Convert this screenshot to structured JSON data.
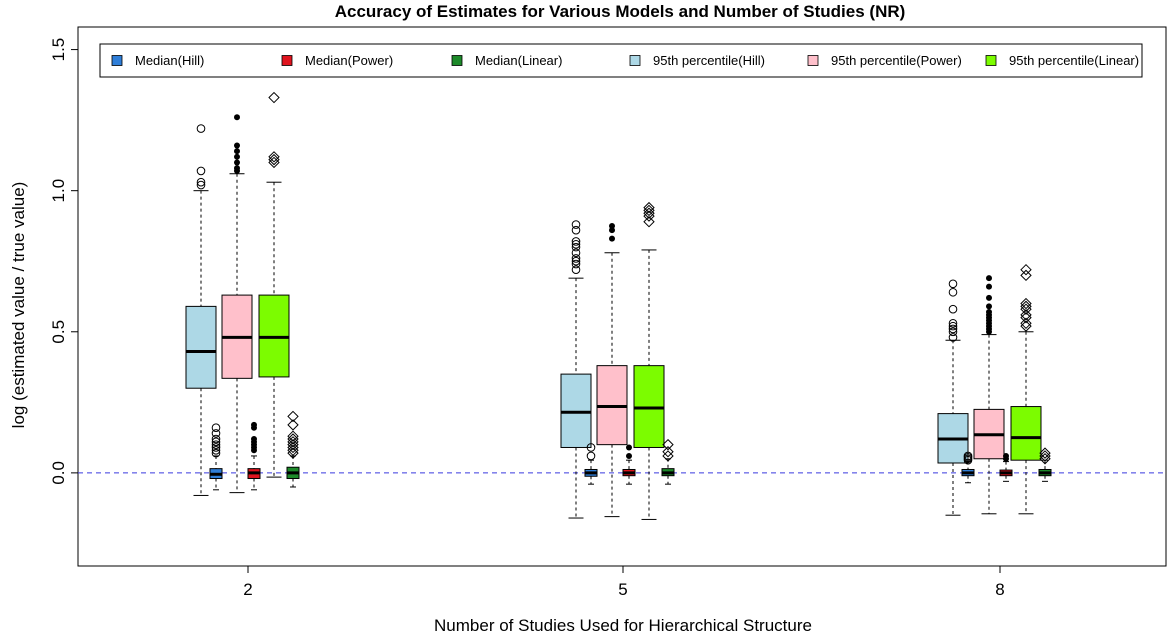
{
  "chart_data": {
    "type": "boxplot",
    "title": "Accuracy of Estimates for Various Models and Number of Studies (NR)",
    "xlabel": "Number of Studies Used for Hierarchical Structure",
    "ylabel": "log (estimated value / true value)",
    "ylim": [
      -0.33,
      1.58
    ],
    "yticks": [
      0.0,
      0.5,
      1.0,
      1.5
    ],
    "ytick_labels": [
      "0.0",
      "0.5",
      "1.0",
      "1.5"
    ],
    "reference_line": {
      "y": 0,
      "color": "#3a3adf",
      "style": "dashed"
    },
    "categories": [
      "2",
      "5",
      "8"
    ],
    "legend": {
      "placement": "top",
      "entries": [
        {
          "label": "Median(Hill)",
          "color": "#2f7ed8"
        },
        {
          "label": "Median(Power)",
          "color": "#e0141e"
        },
        {
          "label": "Median(Linear)",
          "color": "#1d8a2a"
        },
        {
          "label": "95th percentile(Hill)",
          "color": "#add8e6"
        },
        {
          "label": "95th percentile(Power)",
          "color": "#ffc0cb"
        },
        {
          "label": "95th percentile(Linear)",
          "color": "#7cfc00"
        }
      ]
    },
    "series": [
      {
        "name": "95th percentile(Hill)",
        "color": "#add8e6",
        "marker": "circle-open",
        "boxes": [
          {
            "category": "2",
            "q1": 0.3,
            "median": 0.43,
            "q3": 0.59,
            "lower": -0.08,
            "upper": 1.0,
            "outliers": [
              1.02,
              1.03,
              1.07,
              1.22
            ]
          },
          {
            "category": "5",
            "q1": 0.09,
            "median": 0.215,
            "q3": 0.35,
            "lower": -0.16,
            "upper": 0.69,
            "outliers": [
              0.72,
              0.74,
              0.75,
              0.76,
              0.78,
              0.8,
              0.81,
              0.82,
              0.86,
              0.88
            ]
          },
          {
            "category": "8",
            "q1": 0.035,
            "median": 0.12,
            "q3": 0.21,
            "lower": -0.15,
            "upper": 0.47,
            "outliers": [
              0.48,
              0.5,
              0.51,
              0.52,
              0.53,
              0.58,
              0.64,
              0.67
            ]
          }
        ]
      },
      {
        "name": "Median(Hill)",
        "color": "#2f7ed8",
        "marker": "circle-open",
        "boxes": [
          {
            "category": "2",
            "q1": -0.02,
            "median": -0.005,
            "q3": 0.015,
            "lower": -0.06,
            "upper": 0.06,
            "outliers": [
              0.07,
              0.08,
              0.09,
              0.1,
              0.11,
              0.12,
              0.14,
              0.16
            ]
          },
          {
            "category": "5",
            "q1": -0.012,
            "median": 0.0,
            "q3": 0.012,
            "lower": -0.04,
            "upper": 0.045,
            "outliers": [
              0.06,
              0.09
            ]
          },
          {
            "category": "8",
            "q1": -0.01,
            "median": 0.0,
            "q3": 0.012,
            "lower": -0.035,
            "upper": 0.04,
            "outliers": [
              0.045,
              0.05,
              0.055,
              0.06
            ]
          }
        ]
      },
      {
        "name": "95th percentile(Power)",
        "color": "#ffc0cb",
        "marker": "dot-filled",
        "boxes": [
          {
            "category": "2",
            "q1": 0.335,
            "median": 0.48,
            "q3": 0.63,
            "lower": -0.07,
            "upper": 1.06,
            "outliers": [
              1.07,
              1.08,
              1.1,
              1.12,
              1.14,
              1.16,
              1.26
            ]
          },
          {
            "category": "5",
            "q1": 0.1,
            "median": 0.235,
            "q3": 0.38,
            "lower": -0.155,
            "upper": 0.78,
            "outliers": [
              0.83,
              0.86,
              0.875
            ]
          },
          {
            "category": "8",
            "q1": 0.05,
            "median": 0.135,
            "q3": 0.225,
            "lower": -0.145,
            "upper": 0.49,
            "outliers": [
              0.5,
              0.51,
              0.52,
              0.53,
              0.54,
              0.55,
              0.56,
              0.57,
              0.59,
              0.62,
              0.66,
              0.69
            ]
          }
        ]
      },
      {
        "name": "Median(Power)",
        "color": "#e0141e",
        "marker": "dot-filled",
        "boxes": [
          {
            "category": "2",
            "q1": -0.02,
            "median": 0.0,
            "q3": 0.015,
            "lower": -0.06,
            "upper": 0.06,
            "outliers": [
              0.08,
              0.09,
              0.1,
              0.11,
              0.12,
              0.16,
              0.17
            ]
          },
          {
            "category": "5",
            "q1": -0.01,
            "median": 0.0,
            "q3": 0.012,
            "lower": -0.04,
            "upper": 0.045,
            "outliers": [
              0.06,
              0.09
            ]
          },
          {
            "category": "8",
            "q1": -0.01,
            "median": 0.0,
            "q3": 0.01,
            "lower": -0.03,
            "upper": 0.04,
            "outliers": [
              0.05,
              0.06
            ]
          }
        ]
      },
      {
        "name": "95th percentile(Linear)",
        "color": "#7cfc00",
        "marker": "diamond-open",
        "boxes": [
          {
            "category": "2",
            "q1": 0.34,
            "median": 0.48,
            "q3": 0.63,
            "lower": -0.015,
            "upper": 1.03,
            "outliers": [
              1.1,
              1.11,
              1.12,
              1.33
            ]
          },
          {
            "category": "5",
            "q1": 0.09,
            "median": 0.23,
            "q3": 0.38,
            "lower": -0.165,
            "upper": 0.79,
            "outliers": [
              0.89,
              0.91,
              0.92,
              0.93,
              0.94
            ]
          },
          {
            "category": "8",
            "q1": 0.045,
            "median": 0.125,
            "q3": 0.235,
            "lower": -0.145,
            "upper": 0.5,
            "outliers": [
              0.52,
              0.53,
              0.55,
              0.56,
              0.58,
              0.59,
              0.6,
              0.7,
              0.72
            ]
          }
        ]
      },
      {
        "name": "Median(Linear)",
        "color": "#1d8a2a",
        "marker": "diamond-open",
        "boxes": [
          {
            "category": "2",
            "q1": -0.02,
            "median": 0.0,
            "q3": 0.02,
            "lower": -0.05,
            "upper": 0.06,
            "outliers": [
              0.07,
              0.08,
              0.09,
              0.1,
              0.11,
              0.12,
              0.13,
              0.17,
              0.2
            ]
          },
          {
            "category": "5",
            "q1": -0.01,
            "median": 0.0,
            "q3": 0.015,
            "lower": -0.04,
            "upper": 0.05,
            "outliers": [
              0.06,
              0.075,
              0.1
            ]
          },
          {
            "category": "8",
            "q1": -0.01,
            "median": 0.0,
            "q3": 0.012,
            "lower": -0.03,
            "upper": 0.045,
            "outliers": [
              0.05,
              0.06,
              0.07
            ]
          }
        ]
      }
    ]
  }
}
